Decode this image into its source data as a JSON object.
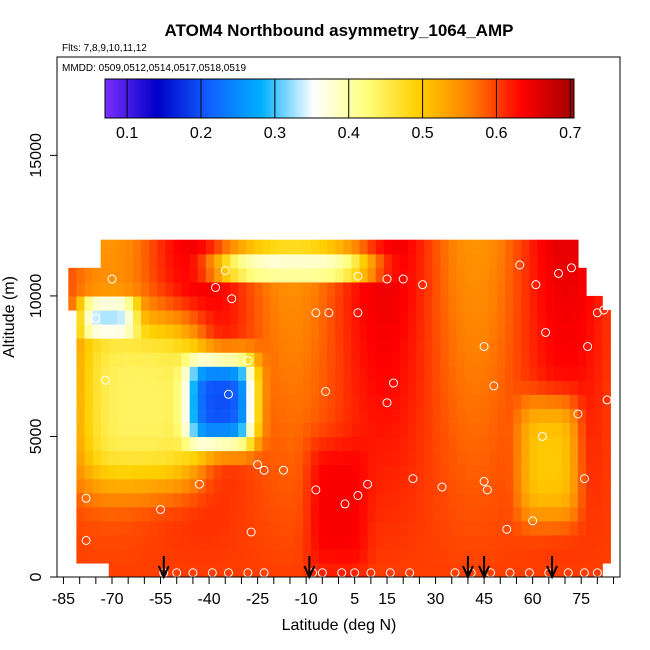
{
  "chart_data": {
    "type": "heatmap",
    "title": "ATOM4 Northbound asymmetry_1064_AMP",
    "flights_label": "Flts: 7,8,9,10,11,12",
    "dates_label": "MMDD: 0509,0512,0514,0517,0518,0519",
    "xlabel": "Latitude (deg N)",
    "ylabel": "Altitude (m)",
    "xlim": [
      -87,
      87
    ],
    "ylim": [
      0,
      18500
    ],
    "x_ticks_labeled": [
      -85,
      -70,
      -55,
      -40,
      -25,
      -10,
      5,
      15,
      30,
      45,
      60,
      75
    ],
    "x_ticks_labels": [
      "-85",
      "-70",
      "-55",
      "-40",
      "-25",
      "-10",
      "5",
      "15",
      "30",
      "45",
      "60",
      "75"
    ],
    "x_minor_ticks": [
      -80,
      -75,
      -65,
      -60,
      -50,
      -45,
      -35,
      -30,
      -20,
      -15,
      -5,
      0,
      10,
      20,
      25,
      35,
      40,
      50,
      55,
      65,
      70,
      80,
      85
    ],
    "y_ticks": [
      0,
      5000,
      10000,
      15000
    ],
    "y_ticks_labels": [
      "0",
      "5000",
      "10000",
      "15000"
    ],
    "colorbar": {
      "min": 0.07,
      "max": 0.705,
      "ticks": [
        0.1,
        0.2,
        0.3,
        0.4,
        0.5,
        0.6,
        0.7
      ],
      "tick_labels": [
        "0.1",
        "0.2",
        "0.3",
        "0.4",
        "0.5",
        "0.6",
        "0.7"
      ],
      "colors": [
        "#7b2fff",
        "#0000c8",
        "#1060ff",
        "#00b0ff",
        "#ffffff",
        "#ffff80",
        "#ffd000",
        "#ff8000",
        "#ff0000",
        "#a00000"
      ]
    },
    "arrows_latitude": [
      -54,
      -9,
      40,
      45,
      66
    ],
    "regions": [
      {
        "lat_min": -85,
        "lat_max": 82,
        "alt_min": 0,
        "alt_max": 11500,
        "value": 0.6
      },
      {
        "lat_min": -82,
        "lat_max": -40,
        "alt_min": 3000,
        "alt_max": 9500,
        "value": 0.44
      },
      {
        "lat_min": -48,
        "lat_max": -25,
        "alt_min": 4500,
        "alt_max": 8000,
        "value": 0.2
      },
      {
        "lat_min": -80,
        "lat_max": -62,
        "alt_min": 8500,
        "alt_max": 10000,
        "value": 0.33
      },
      {
        "lat_min": -40,
        "lat_max": 12,
        "alt_min": 10500,
        "alt_max": 11800,
        "value": 0.38
      },
      {
        "lat_min": 55,
        "lat_max": 75,
        "alt_min": 1800,
        "alt_max": 6500,
        "value": 0.5
      },
      {
        "lat_min": -10,
        "lat_max": 10,
        "alt_min": 0,
        "alt_max": 5000,
        "value": 0.64
      }
    ],
    "sample_points": [
      {
        "lat": -75,
        "alt": 9200
      },
      {
        "lat": -72,
        "alt": 7000
      },
      {
        "lat": -78,
        "alt": 2800
      },
      {
        "lat": -78,
        "alt": 1300
      },
      {
        "lat": -70,
        "alt": 10600
      },
      {
        "lat": -55,
        "alt": 2400
      },
      {
        "lat": -43,
        "alt": 3300
      },
      {
        "lat": -38,
        "alt": 10300
      },
      {
        "lat": -35,
        "alt": 10900
      },
      {
        "lat": -33,
        "alt": 9900
      },
      {
        "lat": -34,
        "alt": 6500
      },
      {
        "lat": -28,
        "alt": 7700
      },
      {
        "lat": -27,
        "alt": 1600
      },
      {
        "lat": -25,
        "alt": 4000
      },
      {
        "lat": -23,
        "alt": 3800
      },
      {
        "lat": -20,
        "alt": 11200
      },
      {
        "lat": -17,
        "alt": 3800
      },
      {
        "lat": -7,
        "alt": 3100
      },
      {
        "lat": -7,
        "alt": 9400
      },
      {
        "lat": -3,
        "alt": 9400
      },
      {
        "lat": -4,
        "alt": 6600
      },
      {
        "lat": 2,
        "alt": 2600
      },
      {
        "lat": 6,
        "alt": 9400
      },
      {
        "lat": 6,
        "alt": 10700
      },
      {
        "lat": 6,
        "alt": 2900
      },
      {
        "lat": 9,
        "alt": 3300
      },
      {
        "lat": 15,
        "alt": 6200
      },
      {
        "lat": 17,
        "alt": 6900
      },
      {
        "lat": 15,
        "alt": 10600
      },
      {
        "lat": 20,
        "alt": 10600
      },
      {
        "lat": 23,
        "alt": 3500
      },
      {
        "lat": 26,
        "alt": 10400
      },
      {
        "lat": 32,
        "alt": 3200
      },
      {
        "lat": 45,
        "alt": 8200
      },
      {
        "lat": 45,
        "alt": 3400
      },
      {
        "lat": 46,
        "alt": 3100
      },
      {
        "lat": 48,
        "alt": 6800
      },
      {
        "lat": 52,
        "alt": 1700
      },
      {
        "lat": 56,
        "alt": 11100
      },
      {
        "lat": 61,
        "alt": 10400
      },
      {
        "lat": 60,
        "alt": 2000
      },
      {
        "lat": 63,
        "alt": 5000
      },
      {
        "lat": 64,
        "alt": 8700
      },
      {
        "lat": 68,
        "alt": 10800
      },
      {
        "lat": 72,
        "alt": 11000
      },
      {
        "lat": 74,
        "alt": 5800
      },
      {
        "lat": 76,
        "alt": 3500
      },
      {
        "lat": 77,
        "alt": 8200
      },
      {
        "lat": 79,
        "alt": 10300
      },
      {
        "lat": 80,
        "alt": 9400
      },
      {
        "lat": 82,
        "alt": 9500
      },
      {
        "lat": 83,
        "alt": 6300
      },
      {
        "lat": -54,
        "alt": 150
      },
      {
        "lat": -50,
        "alt": 150
      },
      {
        "lat": -45,
        "alt": 150
      },
      {
        "lat": -39,
        "alt": 150
      },
      {
        "lat": -34,
        "alt": 150
      },
      {
        "lat": -28,
        "alt": 150
      },
      {
        "lat": -23,
        "alt": 150
      },
      {
        "lat": -8,
        "alt": 150
      },
      {
        "lat": -5,
        "alt": 150
      },
      {
        "lat": 1,
        "alt": 150
      },
      {
        "lat": 5,
        "alt": 150
      },
      {
        "lat": 10,
        "alt": 150
      },
      {
        "lat": 16,
        "alt": 150
      },
      {
        "lat": 22,
        "alt": 150
      },
      {
        "lat": 36,
        "alt": 150
      },
      {
        "lat": 41,
        "alt": 150
      },
      {
        "lat": 47,
        "alt": 150
      },
      {
        "lat": 53,
        "alt": 150
      },
      {
        "lat": 59,
        "alt": 150
      },
      {
        "lat": 65,
        "alt": 150
      },
      {
        "lat": 71,
        "alt": 150
      },
      {
        "lat": 76,
        "alt": 150
      },
      {
        "lat": 80,
        "alt": 150
      }
    ]
  }
}
